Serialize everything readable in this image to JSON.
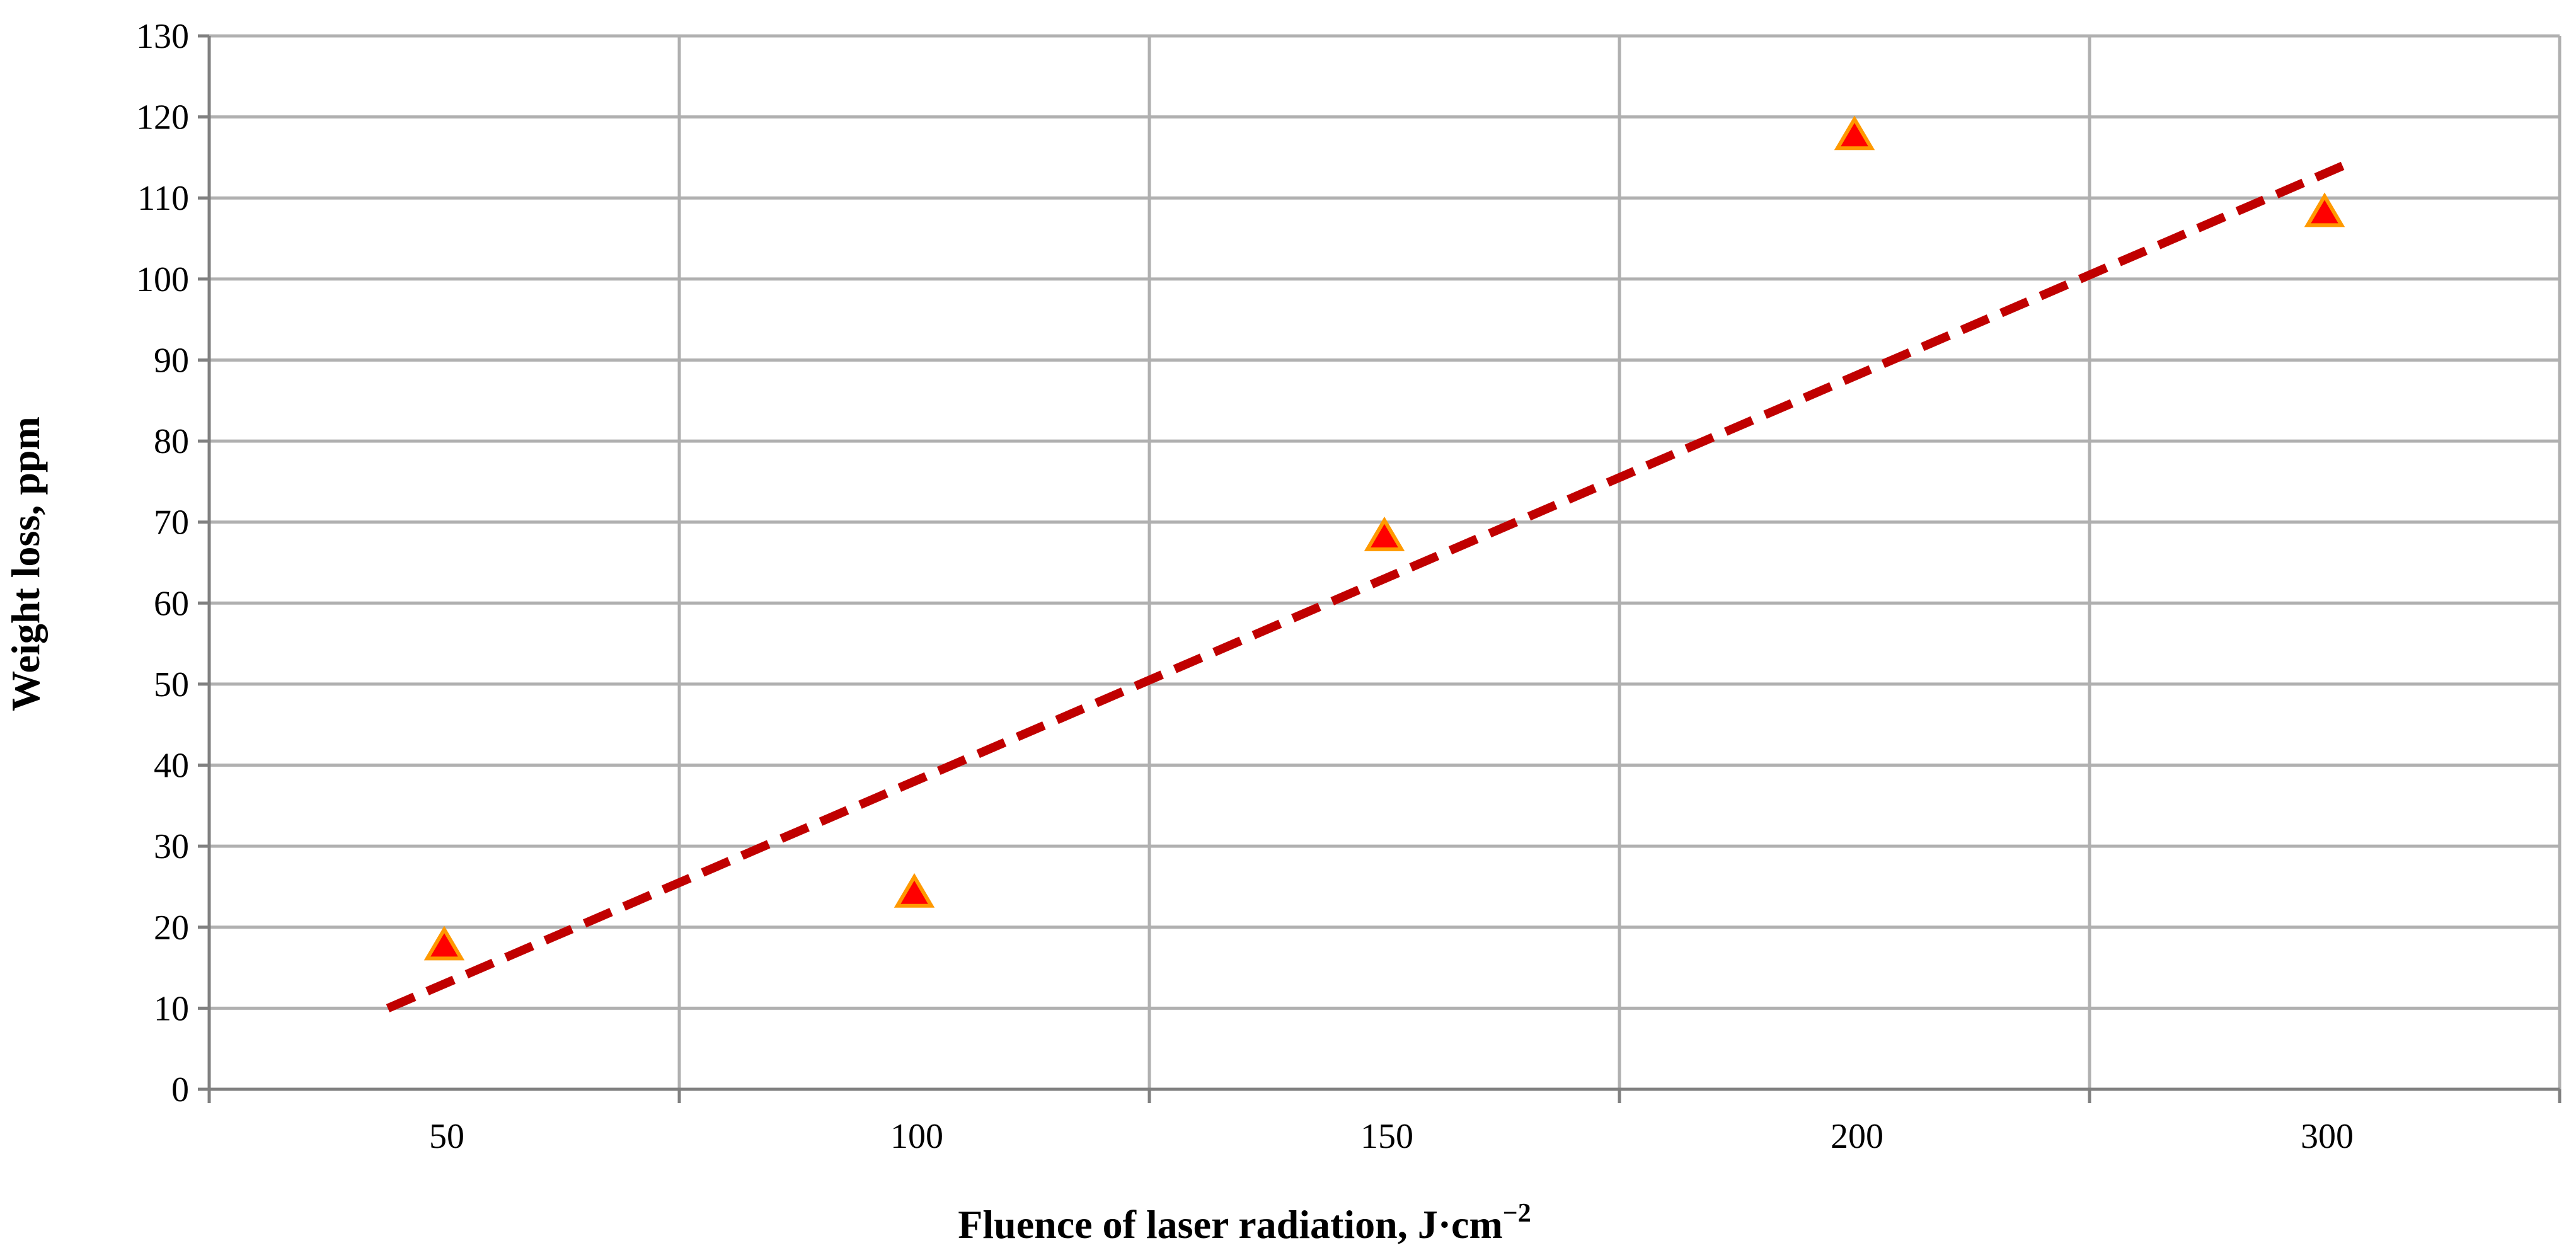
{
  "chart_data": {
    "type": "scatter",
    "categories": [
      "50",
      "100",
      "150",
      "200",
      "300"
    ],
    "x": [
      50,
      100,
      150,
      200,
      300
    ],
    "series": [
      {
        "values": [
          17.5,
          24,
          68,
          117.5,
          108
        ],
        "marker": "triangle",
        "color": "#ff0000",
        "edge_color": "#ff9900"
      }
    ],
    "trendline": {
      "kind": "linear",
      "values": [
        10,
        121.5
      ],
      "color": "#c00000",
      "style": "dashed"
    },
    "xlabel": "Fluence of laser radiation, J·cm",
    "xlabel_sup": "−2",
    "ylabel": "Weight loss, ppm",
    "ylim": [
      0,
      130
    ],
    "yticks": [
      0,
      10,
      20,
      30,
      40,
      50,
      60,
      70,
      80,
      90,
      100,
      110,
      120,
      130
    ],
    "grid": true,
    "grid_color": "#b0b0b0",
    "axis_color": "#808080"
  }
}
